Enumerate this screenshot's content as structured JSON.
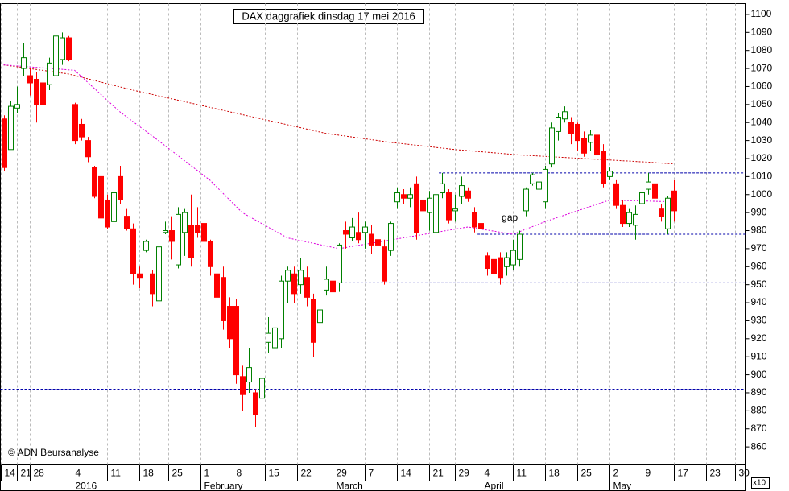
{
  "chart_data": {
    "type": "candlestick",
    "title": "DAX daggrafiek dinsdag 17 mei 2016",
    "copyright": "© ADN Beursanalyse",
    "scale_note": "x10",
    "up_color": "#008000",
    "down_color": "#ff0000",
    "grid": true,
    "ylim": [
      850,
      1106
    ],
    "yticks": [
      860,
      870,
      880,
      890,
      900,
      910,
      920,
      930,
      940,
      950,
      960,
      970,
      980,
      990,
      1000,
      1010,
      1020,
      1030,
      1040,
      1050,
      1060,
      1070,
      1080,
      1090,
      1100
    ],
    "xlim": [
      -0.5,
      115
    ],
    "xticks": [
      {
        "value": -0.5,
        "label": "14"
      },
      {
        "value": 2,
        "label": "21"
      },
      {
        "value": 4,
        "label": "28"
      },
      {
        "value": 10.5,
        "label": "4"
      },
      {
        "value": 16,
        "label": "11"
      },
      {
        "value": 21,
        "label": "18"
      },
      {
        "value": 25.5,
        "label": "25"
      },
      {
        "value": 30.5,
        "label": "1"
      },
      {
        "value": 35.5,
        "label": "8"
      },
      {
        "value": 40.5,
        "label": "15"
      },
      {
        "value": 45.5,
        "label": "22"
      },
      {
        "value": 51,
        "label": "29"
      },
      {
        "value": 56,
        "label": "7"
      },
      {
        "value": 61,
        "label": "14"
      },
      {
        "value": 66,
        "label": "21"
      },
      {
        "value": 70,
        "label": "29"
      },
      {
        "value": 74,
        "label": "4"
      },
      {
        "value": 79,
        "label": "11"
      },
      {
        "value": 84,
        "label": "18"
      },
      {
        "value": 89,
        "label": "25"
      },
      {
        "value": 94,
        "label": "2"
      },
      {
        "value": 99,
        "label": "9"
      },
      {
        "value": 104,
        "label": "17"
      },
      {
        "value": 109,
        "label": "23"
      },
      {
        "value": 113.5,
        "label": "30"
      }
    ],
    "month_ticks": [
      {
        "value": 10.5,
        "label": "2016"
      },
      {
        "value": 30.5,
        "label": "February"
      },
      {
        "value": 51,
        "label": "March"
      },
      {
        "value": 74,
        "label": "April"
      },
      {
        "value": 94,
        "label": "May"
      }
    ],
    "open": [
      1042,
      1025,
      1048,
      1070,
      1066,
      1064,
      1062,
      1061,
      1066,
      1075,
      1087,
      1050,
      1039,
      1030,
      1015,
      1010,
      997,
      985,
      1010,
      988,
      981,
      956,
      969,
      956,
      941,
      979,
      980,
      961,
      979,
      983,
      983,
      984,
      974,
      956,
      954,
      938,
      938,
      899,
      896,
      890,
      887,
      918,
      915,
      920,
      952,
      956,
      950,
      954,
      942,
      929,
      947,
      952,
      951,
      980,
      976,
      979,
      979,
      978,
      975,
      971,
      969,
      996,
      1000,
      998,
      1006,
      997,
      990,
      979,
      1001,
      1001,
      991,
      999,
      1002,
      990,
      984,
      966,
      964,
      965,
      960,
      961,
      964,
      991,
      1006,
      1003,
      996,
      1017,
      1035,
      1042,
      1040,
      1039,
      1031,
      1029,
      1033,
      1024,
      1010,
      1006,
      994,
      984,
      983,
      995,
      1003,
      1006,
      992,
      981,
      1002
    ],
    "high": [
      1044,
      1052,
      1060,
      1084,
      1070,
      1068,
      1068,
      1076,
      1090,
      1090,
      1088,
      1051,
      1042,
      1032,
      1016,
      1012,
      1000,
      1004,
      1016,
      992,
      984,
      960,
      975,
      958,
      973,
      985,
      988,
      993,
      992,
      1000,
      993,
      985,
      975,
      960,
      960,
      943,
      942,
      905,
      915,
      892,
      900,
      932,
      927,
      955,
      960,
      960,
      965,
      960,
      945,
      945,
      960,
      958,
      973,
      985,
      987,
      990,
      985,
      983,
      985,
      975,
      985,
      1004,
      1003,
      1004,
      1010,
      1000,
      1002,
      1005,
      1012,
      1003,
      1000,
      1010,
      1004,
      993,
      990,
      968,
      966,
      968,
      968,
      975,
      980,
      1004,
      1012,
      1010,
      1016,
      1040,
      1045,
      1049,
      1043,
      1040,
      1035,
      1036,
      1036,
      1028,
      1015,
      1008,
      997,
      992,
      994,
      1004,
      1012,
      1008,
      995,
      999,
      1008
    ],
    "low": [
      1013,
      1025,
      1045,
      1066,
      1055,
      1040,
      1040,
      1058,
      1062,
      1072,
      1074,
      1028,
      1030,
      1018,
      998,
      985,
      981,
      983,
      995,
      980,
      950,
      948,
      968,
      938,
      940,
      978,
      964,
      959,
      966,
      960,
      976,
      965,
      955,
      940,
      925,
      915,
      895,
      880,
      890,
      871,
      885,
      912,
      908,
      915,
      940,
      940,
      945,
      938,
      910,
      925,
      944,
      935,
      946,
      970,
      974,
      973,
      970,
      967,
      965,
      950,
      966,
      992,
      995,
      993,
      975,
      985,
      980,
      977,
      998,
      984,
      985,
      995,
      996,
      979,
      970,
      955,
      952,
      950,
      955,
      958,
      960,
      988,
      1005,
      1000,
      992,
      1015,
      1030,
      1040,
      1028,
      1024,
      1021,
      1024,
      1020,
      1004,
      1008,
      992,
      982,
      982,
      975,
      993,
      1000,
      996,
      985,
      978,
      985
    ],
    "close": [
      1015,
      1049,
      1050,
      1076,
      1062,
      1050,
      1050,
      1073,
      1088,
      1087,
      1075,
      1030,
      1032,
      1021,
      999,
      987,
      982,
      1001,
      997,
      981,
      956,
      954,
      974,
      945,
      971,
      980,
      974,
      989,
      990,
      965,
      979,
      974,
      960,
      943,
      930,
      920,
      900,
      889,
      904,
      878,
      898,
      923,
      926,
      952,
      958,
      945,
      958,
      943,
      918,
      936,
      953,
      946,
      972,
      978,
      982,
      975,
      982,
      972,
      972,
      952,
      984,
      1001,
      998,
      1000,
      979,
      991,
      998,
      1000,
      1006,
      986,
      992,
      1005,
      998,
      982,
      981,
      959,
      956,
      954,
      965,
      969,
      978,
      1003,
      1011,
      1007,
      1014,
      1037,
      1043,
      1046,
      1034,
      1030,
      1023,
      1033,
      1022,
      1006,
      1013,
      994,
      984,
      990,
      989,
      1001,
      1007,
      998,
      988,
      998,
      991
    ],
    "moving_averages": [
      {
        "color": "#cc0000",
        "x": [
          0,
          10,
          20,
          30,
          40,
          50,
          60,
          70,
          80,
          90,
          100,
          104
        ],
        "values": [
          1072,
          1067,
          1058,
          1050,
          1042,
          1034,
          1029,
          1025,
          1022,
          1020,
          1018,
          1017
        ]
      },
      {
        "color": "#dd00dd",
        "x": [
          0,
          11,
          18,
          24,
          32,
          37,
          44,
          52,
          62,
          72,
          79,
          84,
          89,
          94,
          104
        ],
        "values": [
          1072,
          1069,
          1046,
          1030,
          1008,
          990,
          976,
          970,
          976,
          982,
          978,
          985,
          991,
          997,
          996
        ]
      }
    ],
    "levels": [
      {
        "value": 1012,
        "from": 67.5
      },
      {
        "value": 978,
        "from": 73.5
      },
      {
        "value": 951,
        "from": 51
      },
      {
        "value": 892,
        "from": -0.5
      }
    ],
    "level_color": "#0000aa",
    "annotations": [
      {
        "text": "gap",
        "x": 78.5,
        "y": 987
      }
    ]
  }
}
